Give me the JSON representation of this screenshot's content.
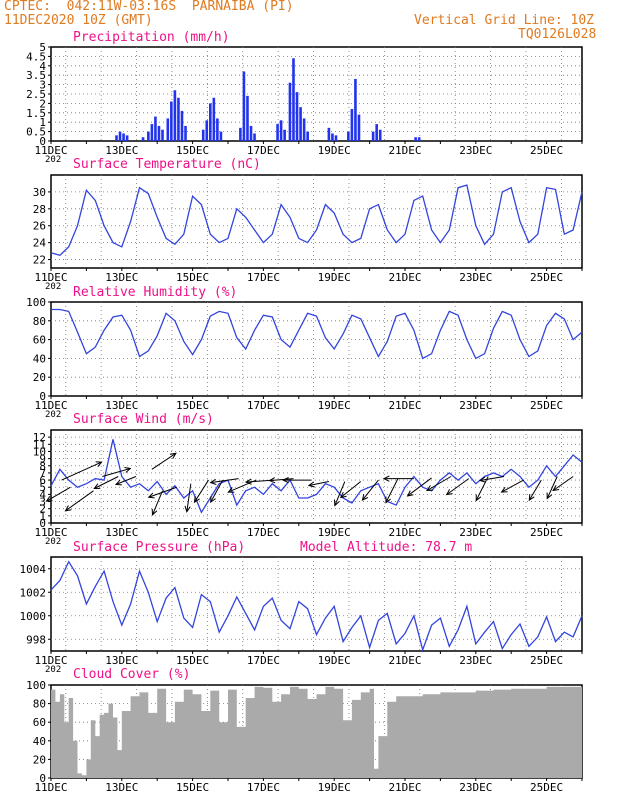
{
  "header": {
    "line1": "CPTEC:  042:11W-03:16S  PARNAIBA (PI)",
    "line2": "11DEC2020 10Z (GMT)",
    "right1": "Vertical Grid Line: 10Z",
    "right2": "TQ0126L028"
  },
  "colors": {
    "line": "#3344dd",
    "bar": "#2233ee",
    "title": "#ee1188",
    "header": "#e07a1f",
    "cloud": "#aaaaaa",
    "grid": "#777777"
  },
  "x_tick_labels": [
    "11DEC",
    "13DEC",
    "15DEC",
    "17DEC",
    "19DEC",
    "21DEC",
    "23DEC",
    "25DEC"
  ],
  "year_fragment": "202",
  "model_altitude": "Model Altitude: 78.7  m",
  "chart_data": [
    {
      "type": "bar",
      "title": "Precipitation (mm/h)",
      "ylim": [
        0,
        5
      ],
      "yticks": [
        "0",
        "0.5",
        "1",
        "1.5",
        "2",
        "2.5",
        "3",
        "3.5",
        "4",
        "4.5",
        "5"
      ],
      "x_unit": "days since 11DEC 00Z",
      "points": [
        [
          1.85,
          0.3
        ],
        [
          1.95,
          0.5
        ],
        [
          2.05,
          0.4
        ],
        [
          2.15,
          0.3
        ],
        [
          2.6,
          0.2
        ],
        [
          2.75,
          0.5
        ],
        [
          2.85,
          0.9
        ],
        [
          2.95,
          1.3
        ],
        [
          3.05,
          0.8
        ],
        [
          3.15,
          0.6
        ],
        [
          3.3,
          1.2
        ],
        [
          3.4,
          2.1
        ],
        [
          3.5,
          2.7
        ],
        [
          3.6,
          2.3
        ],
        [
          3.7,
          1.6
        ],
        [
          3.8,
          0.8
        ],
        [
          4.3,
          0.6
        ],
        [
          4.4,
          1.1
        ],
        [
          4.5,
          2.0
        ],
        [
          4.6,
          2.3
        ],
        [
          4.7,
          1.2
        ],
        [
          4.8,
          0.5
        ],
        [
          5.35,
          0.7
        ],
        [
          5.45,
          3.7
        ],
        [
          5.55,
          2.4
        ],
        [
          5.65,
          0.8
        ],
        [
          5.75,
          0.4
        ],
        [
          6.4,
          0.9
        ],
        [
          6.5,
          1.1
        ],
        [
          6.6,
          0.6
        ],
        [
          6.75,
          3.1
        ],
        [
          6.85,
          4.4
        ],
        [
          6.95,
          2.6
        ],
        [
          7.05,
          1.8
        ],
        [
          7.15,
          1.2
        ],
        [
          7.25,
          0.5
        ],
        [
          7.85,
          0.7
        ],
        [
          7.95,
          0.4
        ],
        [
          8.05,
          0.3
        ],
        [
          8.4,
          0.5
        ],
        [
          8.5,
          1.7
        ],
        [
          8.6,
          3.3
        ],
        [
          8.7,
          1.4
        ],
        [
          9.1,
          0.5
        ],
        [
          9.2,
          0.9
        ],
        [
          9.3,
          0.6
        ],
        [
          10.3,
          0.2
        ],
        [
          10.4,
          0.2
        ]
      ]
    },
    {
      "type": "line",
      "title": "Surface Temperature (nC)",
      "ylim": [
        21,
        32
      ],
      "yticks": [
        "22",
        "24",
        "26",
        "28",
        "30"
      ],
      "x": [
        0,
        0.25,
        0.5,
        0.75,
        1,
        1.25,
        1.5,
        1.75,
        2,
        2.25,
        2.5,
        2.75,
        3,
        3.25,
        3.5,
        3.75,
        4,
        4.25,
        4.5,
        4.75,
        5,
        5.25,
        5.5,
        5.75,
        6,
        6.25,
        6.5,
        6.75,
        7,
        7.25,
        7.5,
        7.75,
        8,
        8.25,
        8.5,
        8.75,
        9,
        9.25,
        9.5,
        9.75,
        10,
        10.25,
        10.5,
        10.75,
        11,
        11.25,
        11.5,
        11.75,
        12,
        12.25,
        12.5,
        12.75,
        13,
        13.25,
        13.5,
        13.75,
        14,
        14.25,
        14.5,
        14.75,
        15
      ],
      "y": [
        22.8,
        22.5,
        23.5,
        26.0,
        30.2,
        29.0,
        26.0,
        24.0,
        23.5,
        26.5,
        30.5,
        29.8,
        27.0,
        24.5,
        23.8,
        25.0,
        29.5,
        28.5,
        25.0,
        24.0,
        24.5,
        28.0,
        27.0,
        25.5,
        24.0,
        25.0,
        28.5,
        27.0,
        24.5,
        24.0,
        25.5,
        28.5,
        27.5,
        25.0,
        24.0,
        24.5,
        28.0,
        28.5,
        25.5,
        24.0,
        25.0,
        29.0,
        29.5,
        25.5,
        24.0,
        25.5,
        30.5,
        30.8,
        26.0,
        23.8,
        25.0,
        30.0,
        30.5,
        26.5,
        24.0,
        25.0,
        30.5,
        30.3,
        25.0,
        25.5,
        30.0
      ]
    },
    {
      "type": "line",
      "title": "Relative Humidity (%)",
      "ylim": [
        0,
        100
      ],
      "yticks": [
        "0",
        "20",
        "40",
        "60",
        "80",
        "100"
      ],
      "x": [
        0,
        0.25,
        0.5,
        0.75,
        1,
        1.25,
        1.5,
        1.75,
        2,
        2.25,
        2.5,
        2.75,
        3,
        3.25,
        3.5,
        3.75,
        4,
        4.25,
        4.5,
        4.75,
        5,
        5.25,
        5.5,
        5.75,
        6,
        6.25,
        6.5,
        6.75,
        7,
        7.25,
        7.5,
        7.75,
        8,
        8.25,
        8.5,
        8.75,
        9,
        9.25,
        9.5,
        9.75,
        10,
        10.25,
        10.5,
        10.75,
        11,
        11.25,
        11.5,
        11.75,
        12,
        12.25,
        12.5,
        12.75,
        13,
        13.25,
        13.5,
        13.75,
        14,
        14.25,
        14.5,
        14.75,
        15
      ],
      "y": [
        92,
        92,
        90,
        68,
        45,
        52,
        70,
        84,
        86,
        70,
        42,
        48,
        64,
        88,
        80,
        58,
        44,
        60,
        85,
        90,
        88,
        62,
        50,
        70,
        86,
        84,
        60,
        52,
        70,
        88,
        85,
        62,
        50,
        66,
        86,
        82,
        62,
        42,
        58,
        85,
        88,
        70,
        40,
        45,
        70,
        90,
        86,
        60,
        40,
        45,
        72,
        90,
        86,
        60,
        42,
        48,
        75,
        88,
        82,
        60,
        68
      ]
    },
    {
      "type": "line",
      "title": "Surface Wind (m/s)",
      "ylim": [
        0,
        13
      ],
      "yticks": [
        "0",
        "1",
        "2",
        "3",
        "4",
        "5",
        "6",
        "7",
        "8",
        "9",
        "10",
        "11",
        "12"
      ],
      "x": [
        0,
        0.25,
        0.5,
        0.75,
        1,
        1.25,
        1.5,
        1.75,
        2,
        2.25,
        2.5,
        2.75,
        3,
        3.25,
        3.5,
        3.75,
        4,
        4.25,
        4.5,
        4.75,
        5,
        5.25,
        5.5,
        5.75,
        6,
        6.25,
        6.5,
        6.75,
        7,
        7.25,
        7.5,
        7.75,
        8,
        8.25,
        8.5,
        8.75,
        9,
        9.25,
        9.5,
        9.75,
        10,
        10.25,
        10.5,
        10.75,
        11,
        11.25,
        11.5,
        11.75,
        12,
        12.25,
        12.5,
        12.75,
        13,
        13.25,
        13.5,
        13.75,
        14,
        14.25,
        14.5,
        14.75,
        15
      ],
      "y": [
        5.2,
        7.5,
        6.0,
        5.0,
        5.5,
        6.2,
        6.0,
        11.7,
        6.5,
        5.0,
        5.5,
        4.5,
        5.8,
        4.0,
        5.2,
        3.5,
        4.5,
        1.5,
        3.5,
        5.5,
        6.0,
        2.5,
        4.5,
        5.0,
        4.0,
        5.5,
        4.5,
        6.0,
        3.5,
        3.5,
        4.0,
        5.5,
        5.0,
        3.5,
        2.8,
        4.5,
        5.0,
        5.5,
        3.0,
        2.5,
        5.0,
        6.5,
        5.0,
        4.5,
        6.0,
        7.0,
        6.0,
        7.0,
        5.5,
        6.5,
        7.0,
        6.5,
        7.5,
        6.5,
        5.0,
        6.0,
        8.0,
        6.5,
        8.0,
        9.5,
        8.5
      ]
    },
    {
      "type": "line",
      "title": "Surface Pressure (hPa)",
      "ylim": [
        997,
        1005
      ],
      "yticks": [
        "998",
        "1000",
        "1002",
        "1004"
      ],
      "x": [
        0,
        0.25,
        0.5,
        0.75,
        1,
        1.25,
        1.5,
        1.75,
        2,
        2.25,
        2.5,
        2.75,
        3,
        3.25,
        3.5,
        3.75,
        4,
        4.25,
        4.5,
        4.75,
        5,
        5.25,
        5.5,
        5.75,
        6,
        6.25,
        6.5,
        6.75,
        7,
        7.25,
        7.5,
        7.75,
        8,
        8.25,
        8.5,
        8.75,
        9,
        9.25,
        9.5,
        9.75,
        10,
        10.25,
        10.5,
        10.75,
        11,
        11.25,
        11.5,
        11.75,
        12,
        12.25,
        12.5,
        12.75,
        13,
        13.25,
        13.5,
        13.75,
        14,
        14.25,
        14.5,
        14.75,
        15
      ],
      "y": [
        1002.2,
        1003.0,
        1004.6,
        1003.4,
        1001.0,
        1002.5,
        1003.8,
        1001.2,
        999.2,
        1001.0,
        1003.8,
        1002.0,
        999.5,
        1001.5,
        1002.4,
        999.8,
        999.0,
        1001.8,
        1001.2,
        998.6,
        1000.0,
        1001.6,
        1000.2,
        998.8,
        1000.8,
        1001.5,
        999.6,
        998.9,
        1001.2,
        1000.6,
        998.4,
        999.8,
        1000.8,
        997.8,
        999.0,
        1000.0,
        997.3,
        999.6,
        1000.2,
        997.6,
        998.5,
        1000.0,
        997.1,
        999.2,
        999.8,
        997.4,
        998.8,
        1000.8,
        997.6,
        998.6,
        999.5,
        997.2,
        998.4,
        999.3,
        997.4,
        998.2,
        999.9,
        997.8,
        998.6,
        998.2,
        1000.0
      ]
    },
    {
      "type": "area",
      "title": "Cloud Cover (%)",
      "ylim": [
        0,
        100
      ],
      "yticks": [
        "0",
        "20",
        "40",
        "60",
        "80",
        "100"
      ],
      "x": [
        0,
        0.125,
        0.25,
        0.375,
        0.5,
        0.625,
        0.75,
        0.875,
        1,
        1.125,
        1.25,
        1.375,
        1.5,
        1.625,
        1.75,
        1.875,
        2,
        2.25,
        2.5,
        2.75,
        3,
        3.25,
        3.5,
        3.75,
        4,
        4.25,
        4.5,
        4.75,
        5,
        5.25,
        5.5,
        5.75,
        6,
        6.25,
        6.5,
        6.75,
        7,
        7.25,
        7.5,
        7.75,
        8,
        8.25,
        8.5,
        8.75,
        9,
        9.125,
        9.25,
        9.5,
        9.75,
        10,
        10.5,
        11,
        11.5,
        12,
        12.5,
        13,
        13.5,
        14,
        14.5,
        15
      ],
      "y": [
        95,
        82,
        90,
        60,
        86,
        40,
        5,
        3,
        20,
        62,
        45,
        68,
        70,
        80,
        65,
        30,
        72,
        88,
        92,
        70,
        96,
        60,
        82,
        95,
        90,
        72,
        94,
        60,
        95,
        55,
        86,
        98,
        97,
        82,
        90,
        98,
        96,
        85,
        90,
        98,
        96,
        62,
        84,
        92,
        96,
        10,
        45,
        82,
        88,
        88,
        90,
        92,
        92,
        94,
        95,
        96,
        96,
        98,
        98,
        98
      ]
    }
  ],
  "wind_arrows": [
    {
      "x": 0.3,
      "speed": 6.0,
      "dx": 1.0,
      "dy": -0.45
    },
    {
      "x": 0.55,
      "speed": 5.0,
      "dx": -0.6,
      "dy": 0.35
    },
    {
      "x": 1.2,
      "speed": 4.5,
      "dx": -0.7,
      "dy": 0.5
    },
    {
      "x": 1.45,
      "speed": 6.5,
      "dx": 0.7,
      "dy": -0.2
    },
    {
      "x": 1.9,
      "speed": 6.5,
      "dx": -0.6,
      "dy": 0.3
    },
    {
      "x": 2.4,
      "speed": 6.5,
      "dx": -0.5,
      "dy": 0.2
    },
    {
      "x": 2.85,
      "speed": 7.5,
      "dx": 0.6,
      "dy": -0.4
    },
    {
      "x": 3.15,
      "speed": 4.5,
      "dx": -0.25,
      "dy": 0.6
    },
    {
      "x": 3.55,
      "speed": 5.0,
      "dx": -0.7,
      "dy": 0.25
    },
    {
      "x": 3.95,
      "speed": 5.5,
      "dx": -0.1,
      "dy": 0.7
    },
    {
      "x": 4.45,
      "speed": 6.0,
      "dx": -0.35,
      "dy": 0.55
    },
    {
      "x": 4.85,
      "speed": 6.0,
      "dx": -0.3,
      "dy": 0.55
    },
    {
      "x": 5.3,
      "speed": 6.2,
      "dx": -0.7,
      "dy": 0.1
    },
    {
      "x": 5.8,
      "speed": 6.0,
      "dx": -0.7,
      "dy": 0.3
    },
    {
      "x": 6.3,
      "speed": 6.0,
      "dx": -0.7,
      "dy": 0.05
    },
    {
      "x": 6.85,
      "speed": 6.2,
      "dx": -0.6,
      "dy": 0.05
    },
    {
      "x": 7.35,
      "speed": 6.0,
      "dx": -0.7,
      "dy": 0.0
    },
    {
      "x": 7.85,
      "speed": 5.8,
      "dx": -0.5,
      "dy": 0.1
    },
    {
      "x": 8.3,
      "speed": 5.8,
      "dx": -0.25,
      "dy": 0.6
    },
    {
      "x": 8.75,
      "speed": 5.8,
      "dx": -0.5,
      "dy": 0.4
    },
    {
      "x": 9.25,
      "speed": 6.0,
      "dx": -0.4,
      "dy": 0.5
    },
    {
      "x": 9.8,
      "speed": 6.2,
      "dx": -0.3,
      "dy": 0.6
    },
    {
      "x": 10.25,
      "speed": 6.2,
      "dx": -0.75,
      "dy": 0.0
    },
    {
      "x": 10.75,
      "speed": 6.3,
      "dx": -0.6,
      "dy": 0.45
    },
    {
      "x": 11.3,
      "speed": 6.5,
      "dx": -0.6,
      "dy": 0.35
    },
    {
      "x": 11.8,
      "speed": 6.2,
      "dx": -0.55,
      "dy": 0.4
    },
    {
      "x": 12.35,
      "speed": 6.5,
      "dx": -0.3,
      "dy": 0.6
    },
    {
      "x": 12.8,
      "speed": 6.5,
      "dx": -0.6,
      "dy": 0.1
    },
    {
      "x": 13.35,
      "speed": 6.0,
      "dx": -0.55,
      "dy": 0.3
    },
    {
      "x": 13.85,
      "speed": 6.0,
      "dx": -0.3,
      "dy": 0.5
    },
    {
      "x": 14.3,
      "speed": 6.5,
      "dx": -0.25,
      "dy": 0.55
    },
    {
      "x": 14.75,
      "speed": 6.5,
      "dx": -0.5,
      "dy": 0.35
    }
  ]
}
